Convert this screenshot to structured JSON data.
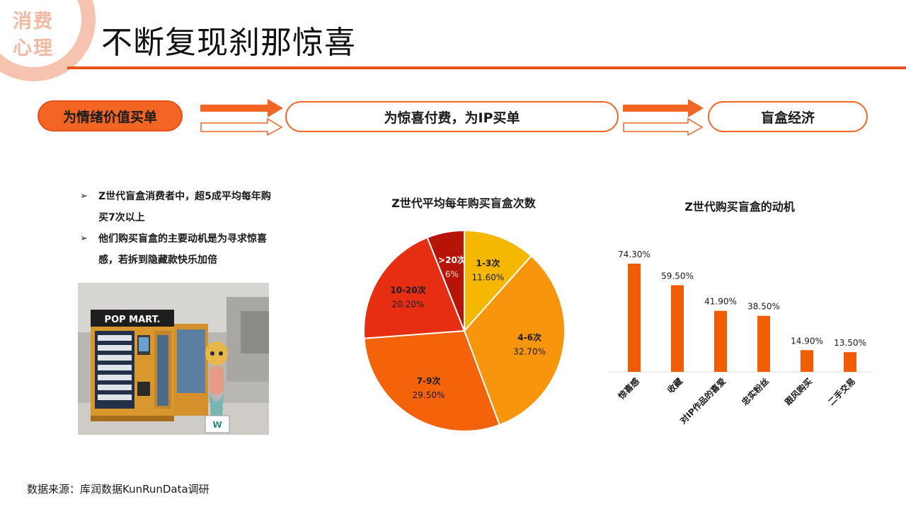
{
  "corner_tag": "消费心理",
  "title": "不断复现刹那惊喜",
  "flow": {
    "step1": "为情绪价值买单",
    "step2": "为惊喜付费，为IP买单",
    "step3": "盲盒经济"
  },
  "bullets": [
    "Z世代盲盒消费者中，超5成平均每年购买7次以上",
    "他们购买盲盒的主要动机是为寻求惊喜感，若拆到隐藏款快乐加倍"
  ],
  "photo": {
    "sign": "POP MART."
  },
  "source": "数据来源：库润数据KunRunData调研",
  "colors": {
    "accent": "#f26522",
    "rule": "#e8531e"
  },
  "chart_data": [
    {
      "type": "pie",
      "title": "Z世代平均每年购买盲盒次数",
      "categories": [
        "1-3次",
        "4-6次",
        "7-9次",
        "10-20次",
        ">20次"
      ],
      "values": [
        11.6,
        32.7,
        29.5,
        20.2,
        6.0
      ],
      "value_labels": [
        "11.60%",
        "32.70%",
        "29.50%",
        "20.20%",
        "6%"
      ],
      "colors": [
        "#f5b700",
        "#f7960c",
        "#f4620a",
        "#e62e12",
        "#b71408"
      ]
    },
    {
      "type": "bar",
      "title": "Z世代购买盲盒的动机",
      "categories": [
        "惊喜感",
        "收藏",
        "对IP作品的喜爱",
        "忠实粉丝",
        "跟风购买",
        "二手交易"
      ],
      "values": [
        74.3,
        59.5,
        41.9,
        38.5,
        14.9,
        13.5
      ],
      "value_labels": [
        "74.30%",
        "59.50%",
        "41.90%",
        "38.50%",
        "14.90%",
        "13.50%"
      ],
      "color": "#f25c05",
      "ylim": [
        0,
        100
      ]
    }
  ]
}
